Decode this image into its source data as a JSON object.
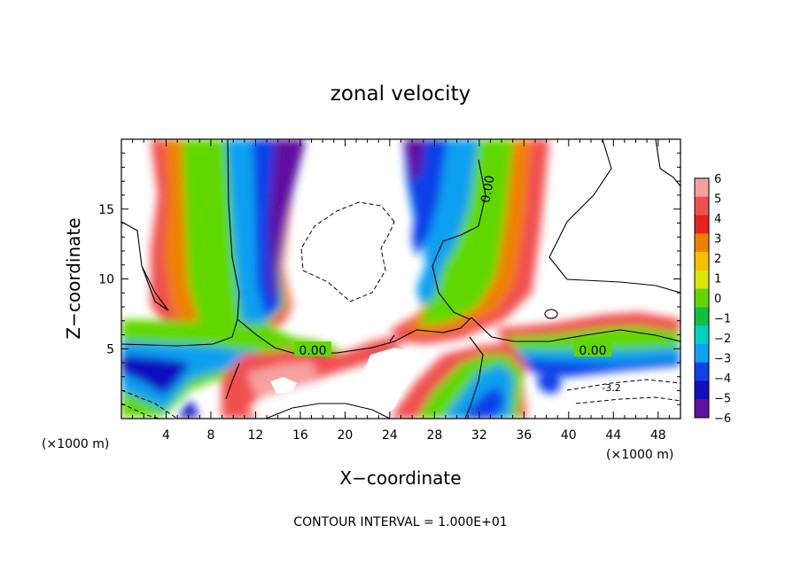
{
  "chart_data": {
    "type": "heatmap",
    "title": "zonal velocity",
    "xlabel": "X−coordinate",
    "ylabel": "Z−coordinate",
    "x_unit_left": "(×1000 m)",
    "x_unit_right": "(×1000 m)",
    "footer": "CONTOUR INTERVAL = 1.000E+01",
    "xlim": [
      0,
      50
    ],
    "ylim": [
      0,
      20
    ],
    "x_ticks": [
      4,
      8,
      12,
      16,
      20,
      24,
      28,
      32,
      36,
      40,
      44,
      48
    ],
    "x_tick_labels": [
      "4",
      "8",
      "12",
      "16",
      "20",
      "24",
      "28",
      "32",
      "36",
      "40",
      "44",
      "48"
    ],
    "y_ticks": [
      5,
      10,
      15
    ],
    "y_tick_labels": [
      "5",
      "10",
      "15"
    ],
    "colorbar": {
      "levels": [
        6,
        5,
        4,
        3,
        2,
        1,
        0,
        -1,
        -2,
        -3,
        -4,
        -5,
        -6
      ],
      "labels": [
        "6",
        "5",
        "4",
        "3",
        "2",
        "1",
        "0",
        "−1",
        "−2",
        "−3",
        "−4",
        "−5",
        "−6"
      ],
      "colors": [
        "#f7a0a0",
        "#f05050",
        "#e82020",
        "#f08000",
        "#f8c000",
        "#d8e800",
        "#60d800",
        "#10c040",
        "#00d0c0",
        "#10a0f0",
        "#1040e8",
        "#1010c0",
        "#6010a0"
      ]
    },
    "contour_labels": [
      {
        "text": "0.00",
        "x": 17.5,
        "y": 4.8
      },
      {
        "text": "0.00",
        "x": 42.5,
        "y": 4.8
      },
      {
        "text": "0.00",
        "x": 33,
        "y": 16.3
      },
      {
        "text": "-3.2",
        "x": 44.3,
        "y": 2.2
      }
    ]
  }
}
